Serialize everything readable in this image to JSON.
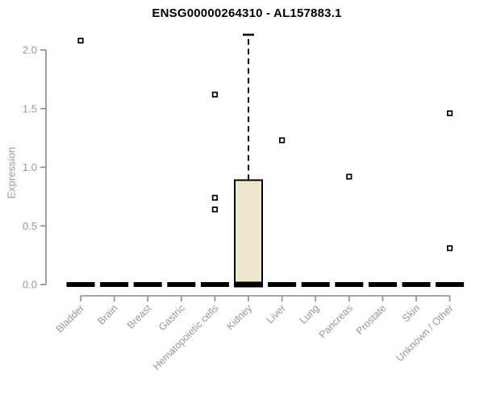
{
  "chart_data": {
    "type": "boxplot",
    "title": "ENSG00000264310 - AL157883.1",
    "ylabel": "Expression",
    "xlabel": "",
    "yticks": [
      0.0,
      0.5,
      1.0,
      1.5,
      2.0
    ],
    "ytick_labels": [
      "0.0",
      "0.5",
      "1.0",
      "1.5",
      "2.0"
    ],
    "ylim": [
      0,
      2.2
    ],
    "grid": false,
    "legend": "none",
    "categories": [
      "Bladder",
      "Brain",
      "Breast",
      "Gastric",
      "Hematopoietic cells",
      "Kidney",
      "Liver",
      "Lung",
      "Pancreas",
      "Prostate",
      "Skin",
      "Unknown / Other"
    ],
    "boxes": [
      {
        "category": "Bladder",
        "q1": 0,
        "median": 0,
        "q3": 0,
        "whisker_low": 0,
        "whisker_high": 0,
        "outliers": [
          2.08
        ]
      },
      {
        "category": "Brain",
        "q1": 0,
        "median": 0,
        "q3": 0,
        "whisker_low": 0,
        "whisker_high": 0,
        "outliers": []
      },
      {
        "category": "Breast",
        "q1": 0,
        "median": 0,
        "q3": 0,
        "whisker_low": 0,
        "whisker_high": 0,
        "outliers": []
      },
      {
        "category": "Gastric",
        "q1": 0,
        "median": 0,
        "q3": 0,
        "whisker_low": 0,
        "whisker_high": 0,
        "outliers": []
      },
      {
        "category": "Hematopoietic cells",
        "q1": 0,
        "median": 0,
        "q3": 0,
        "whisker_low": 0,
        "whisker_high": 0,
        "outliers": [
          1.62,
          0.74,
          0.64
        ]
      },
      {
        "category": "Kidney",
        "q1": 0,
        "median": 0,
        "q3": 0.89,
        "whisker_low": 0,
        "whisker_high": 2.13,
        "outliers": []
      },
      {
        "category": "Liver",
        "q1": 0,
        "median": 0,
        "q3": 0,
        "whisker_low": 0,
        "whisker_high": 0,
        "outliers": [
          1.23
        ]
      },
      {
        "category": "Lung",
        "q1": 0,
        "median": 0,
        "q3": 0,
        "whisker_low": 0,
        "whisker_high": 0,
        "outliers": []
      },
      {
        "category": "Pancreas",
        "q1": 0,
        "median": 0,
        "q3": 0,
        "whisker_low": 0,
        "whisker_high": 0,
        "outliers": [
          0.92
        ]
      },
      {
        "category": "Prostate",
        "q1": 0,
        "median": 0,
        "q3": 0,
        "whisker_low": 0,
        "whisker_high": 0,
        "outliers": []
      },
      {
        "category": "Skin",
        "q1": 0,
        "median": 0,
        "q3": 0,
        "whisker_low": 0,
        "whisker_high": 0,
        "outliers": []
      },
      {
        "category": "Unknown / Other",
        "q1": 0,
        "median": 0,
        "q3": 0,
        "whisker_low": 0,
        "whisker_high": 0,
        "outliers": [
          1.46,
          0.31
        ]
      }
    ],
    "outlier_marker": "open-square",
    "colors": {
      "box_fill": "#ECE7CD",
      "box_border": "#000000",
      "whisker": "#000000",
      "axis_line": "#8a8a8a",
      "tick_label": "#979797",
      "title": "#000000",
      "background": "#ffffff"
    }
  }
}
